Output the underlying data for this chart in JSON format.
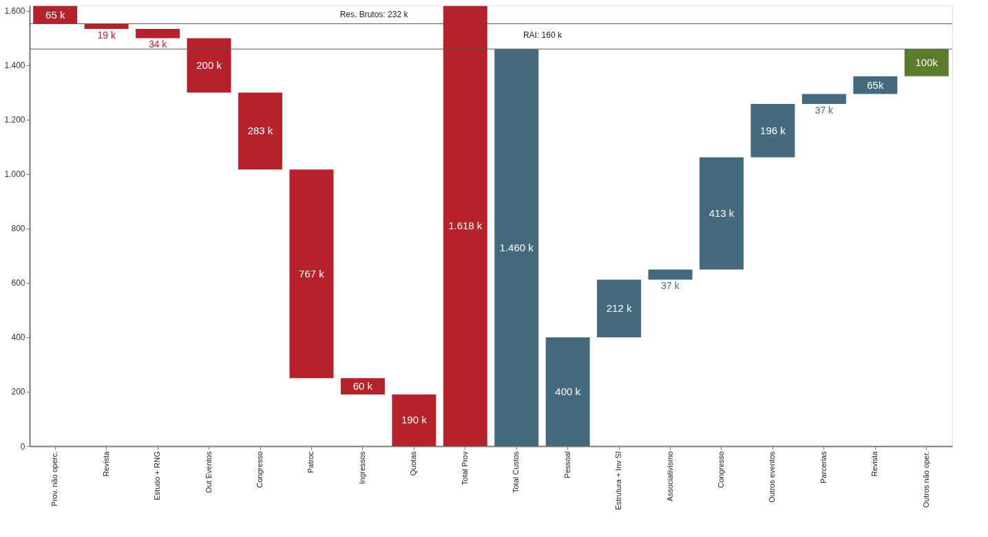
{
  "chart_data": {
    "type": "bar",
    "categories": [
      "Prov. não operc.",
      "Revista",
      "Estudo + RNG",
      "Out Eventos",
      "Congresso",
      "Patroc",
      "Ingressos",
      "Quotas",
      "Total Prov",
      "Total Custos",
      "Pessoal",
      "Estrutura + Inv SI",
      "Associativismo",
      "Congresso",
      "Outros eventos",
      "Parcerias",
      "Revista",
      "Outros não oper."
    ],
    "values": [
      65,
      19,
      34,
      200,
      283,
      767,
      60,
      190,
      1618,
      1460,
      400,
      212,
      37,
      413,
      196,
      37,
      65,
      100
    ],
    "base": [
      1553,
      1534,
      1500,
      1300,
      1017,
      250,
      190,
      0,
      0,
      0,
      0,
      400,
      612,
      649,
      1062,
      1258,
      1295,
      1360
    ],
    "colors": [
      "#b5222c",
      "#b5222c",
      "#b5222c",
      "#b5222c",
      "#b5222c",
      "#b5222c",
      "#b5222c",
      "#b5222c",
      "#b5222c",
      "#456a7d",
      "#456a7d",
      "#456a7d",
      "#456a7d",
      "#456a7d",
      "#456a7d",
      "#456a7d",
      "#456a7d",
      "#5a7a2e"
    ],
    "value_labels": [
      "65 k",
      "19 k",
      "34 k",
      "200 k",
      "283 k",
      "767 k",
      "60 k",
      "190 k",
      "1.618 k",
      "1.460 k",
      "400 k",
      "212 k",
      "37 k",
      "413 k",
      "196 k",
      "37 k",
      "65k",
      "100k"
    ],
    "ylim": [
      0,
      1620
    ],
    "yticks": [
      0,
      200,
      400,
      600,
      800,
      {
        "value": 1000,
        "label": "1.000"
      },
      {
        "value": 1200,
        "label": "1.200"
      },
      {
        "value": 1400,
        "label": "1.400"
      },
      {
        "value": 1600,
        "label": "1.600"
      }
    ],
    "grid": false,
    "ref_lines": [
      {
        "axis": "y",
        "value": 1553,
        "color": "#555555"
      },
      {
        "axis": "y",
        "value": 1460,
        "color": "#555555"
      }
    ],
    "annotations": [
      "Res. Brutos: 232 k",
      "RAI: 160 k"
    ]
  }
}
